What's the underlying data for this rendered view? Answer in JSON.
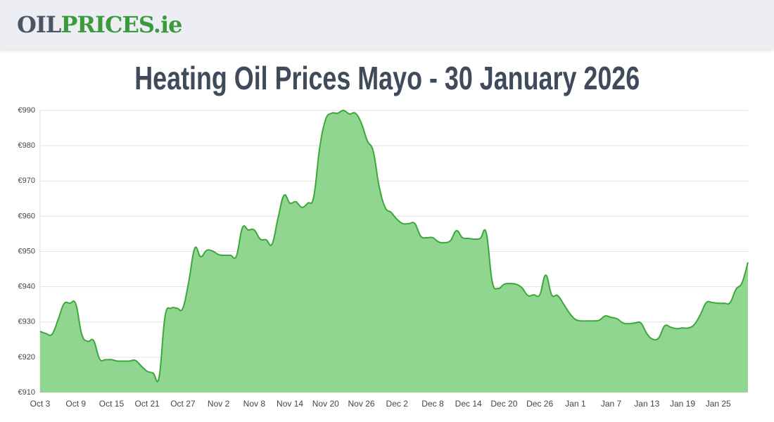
{
  "header": {
    "logo_part1": "OIL",
    "logo_part2": "PRICES.ie"
  },
  "chart_data": {
    "type": "area",
    "title": "Heating Oil Prices Mayo - 30 January 2026",
    "categories": [
      "Oct 3",
      null,
      null,
      null,
      null,
      null,
      "Oct 9",
      null,
      null,
      null,
      null,
      null,
      "Oct 15",
      null,
      null,
      null,
      null,
      null,
      "Oct 21",
      null,
      null,
      null,
      null,
      null,
      "Oct 27",
      null,
      null,
      null,
      null,
      null,
      "Nov 2",
      null,
      null,
      null,
      null,
      null,
      "Nov 8",
      null,
      null,
      null,
      null,
      null,
      "Nov 14",
      null,
      null,
      null,
      null,
      null,
      "Nov 20",
      null,
      null,
      null,
      null,
      null,
      "Nov 26",
      null,
      null,
      null,
      null,
      null,
      "Dec 2",
      null,
      null,
      null,
      null,
      null,
      "Dec 8",
      null,
      null,
      null,
      null,
      null,
      "Dec 14",
      null,
      null,
      null,
      null,
      null,
      "Dec 20",
      null,
      null,
      null,
      null,
      null,
      "Dec 26",
      null,
      null,
      null,
      null,
      null,
      "Jan 1",
      null,
      null,
      null,
      null,
      null,
      "Jan 7",
      null,
      null,
      null,
      null,
      null,
      "Jan 13",
      null,
      null,
      null,
      null,
      null,
      "Jan 19",
      null,
      null,
      null,
      null,
      null,
      "Jan 25",
      null,
      null,
      null,
      null,
      null
    ],
    "values": [
      927.3,
      926.7,
      926.5,
      930.5,
      935.1,
      935.3,
      935.1,
      926.5,
      924.5,
      924.7,
      919.5,
      919.3,
      919.3,
      918.9,
      918.9,
      918.9,
      919.1,
      917.5,
      916,
      915.5,
      914.3,
      931.5,
      933.9,
      933.9,
      933.9,
      941.5,
      950.9,
      948.5,
      950.3,
      950.1,
      949.1,
      948.9,
      948.9,
      948.7,
      956.7,
      956.1,
      956.1,
      953.5,
      953.3,
      952.1,
      959.5,
      965.9,
      963.7,
      964.1,
      962.5,
      963.7,
      965.5,
      979.4,
      987.4,
      989.2,
      989.2,
      990,
      989,
      989.2,
      986.4,
      981.4,
      978.4,
      968.4,
      962.5,
      961.1,
      959.1,
      957.9,
      957.9,
      957.9,
      954.3,
      953.9,
      953.9,
      952.7,
      952.5,
      953.1,
      955.9,
      953.9,
      953.7,
      953.5,
      953.7,
      955.3,
      941.5,
      939.5,
      940.7,
      940.9,
      940.7,
      939.7,
      937.5,
      937.7,
      937.7,
      943.3,
      937.7,
      937.5,
      935.1,
      932.5,
      930.7,
      930.3,
      930.3,
      930.3,
      930.5,
      931.7,
      931.3,
      930.9,
      929.7,
      929.5,
      929.7,
      929.7,
      926.7,
      925.1,
      925.5,
      928.9,
      928.5,
      928.1,
      928.3,
      928.3,
      929.3,
      932.1,
      935.5,
      935.5,
      935.3,
      935.3,
      935.5,
      939.3,
      941.1,
      946.9
    ],
    "color": "#3aa83a",
    "ylim": [
      910,
      990
    ],
    "yticks": [
      {
        "value": 910,
        "label": "€910"
      },
      {
        "value": 920,
        "label": "€920"
      },
      {
        "value": 930,
        "label": "€930"
      },
      {
        "value": 940,
        "label": "€940"
      },
      {
        "value": 950,
        "label": "€950"
      },
      {
        "value": 960,
        "label": "€960"
      },
      {
        "value": 970,
        "label": "€970"
      },
      {
        "value": 980,
        "label": "€980"
      },
      {
        "value": 990,
        "label": "€990"
      }
    ],
    "grid": true
  }
}
